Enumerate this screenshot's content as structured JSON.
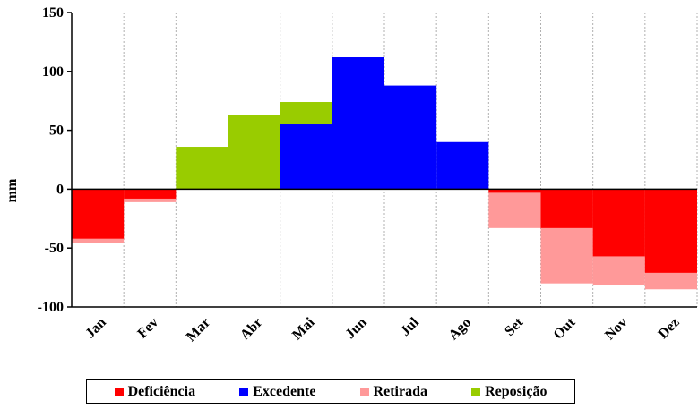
{
  "chart_data": {
    "type": "bar",
    "title": "",
    "xlabel": "",
    "ylabel": "mm",
    "ylim": [
      -100,
      150
    ],
    "yticks": [
      -100,
      -50,
      0,
      50,
      100,
      150
    ],
    "grid": true,
    "legend_position": "bottom",
    "categories": [
      "Jan",
      "Fev",
      "Mar",
      "Abr",
      "Mai",
      "Jun",
      "Jul",
      "Ago",
      "Set",
      "Out",
      "Nov",
      "Dez"
    ],
    "series": [
      {
        "name": "Deficiência",
        "color": "#ff0000",
        "values": [
          -42,
          -8,
          0,
          0,
          0,
          0,
          0,
          0,
          -3,
          -33,
          -57,
          -71
        ]
      },
      {
        "name": "Excedente",
        "color": "#0000ff",
        "values": [
          0,
          0,
          0,
          0,
          55,
          112,
          88,
          40,
          0,
          0,
          0,
          0
        ]
      },
      {
        "name": "Retirada",
        "color": "#ff9999",
        "values": [
          -46,
          -11,
          0,
          0,
          0,
          0,
          0,
          0,
          -33,
          -80,
          -81,
          -85
        ]
      },
      {
        "name": "Reposição",
        "color": "#99cc00",
        "values": [
          0,
          0,
          36,
          63,
          74,
          0,
          0,
          0,
          0,
          0,
          0,
          0
        ]
      }
    ]
  }
}
